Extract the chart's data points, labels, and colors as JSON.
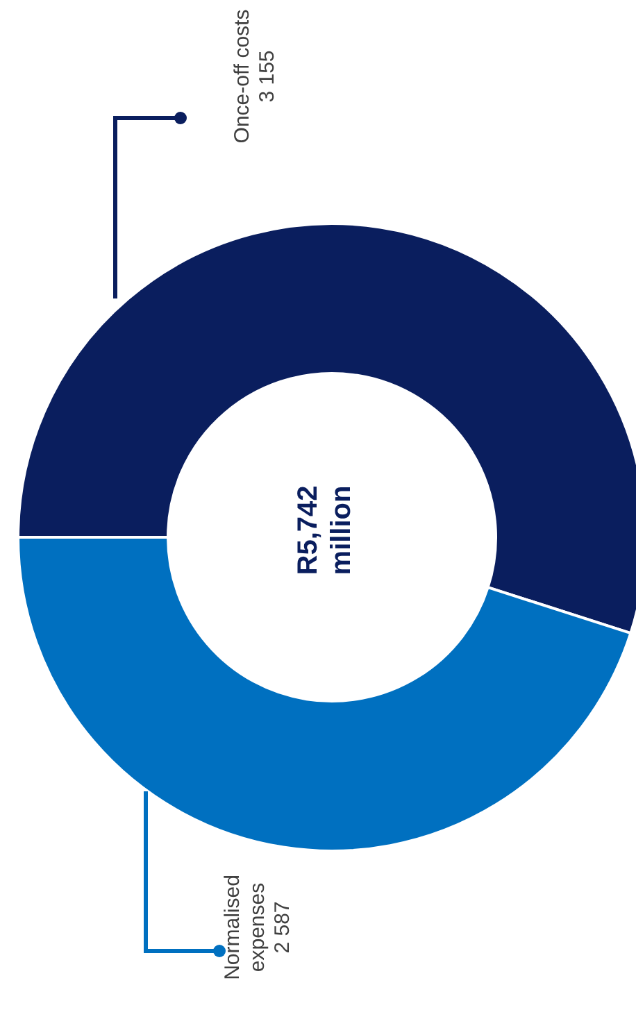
{
  "chart_data": {
    "type": "donut",
    "title": "R5,742 million",
    "categories": [
      "Once-off costs",
      "Normalised expenses"
    ],
    "values": [
      3155,
      2587
    ],
    "value_labels": [
      "3 155",
      "2 587"
    ],
    "colors": [
      "#0a1e5e",
      "#0070c0"
    ]
  }
}
